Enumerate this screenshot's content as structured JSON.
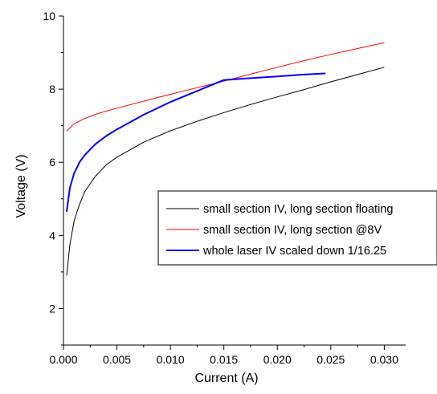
{
  "chart_data": {
    "type": "line",
    "xlabel": "Current (A)",
    "ylabel": "Voltage (V)",
    "xlim": [
      0.0,
      0.032
    ],
    "ylim": [
      1.0,
      10.0
    ],
    "x_ticks": [
      0.0,
      0.005,
      0.01,
      0.015,
      0.02,
      0.025,
      0.03
    ],
    "x_tick_labels": [
      "0.000",
      "0.005",
      "0.010",
      "0.015",
      "0.020",
      "0.025",
      "0.030"
    ],
    "y_ticks": [
      2,
      4,
      6,
      8,
      10
    ],
    "y_tick_labels": [
      "2",
      "4",
      "6",
      "8",
      "10"
    ],
    "grid": false,
    "legend_position": "center-right",
    "series": [
      {
        "name": "small section IV, long section floating",
        "color": "#000000",
        "x": [
          0.0003,
          0.0006,
          0.001,
          0.0015,
          0.002,
          0.003,
          0.004,
          0.005,
          0.0075,
          0.01,
          0.0125,
          0.015,
          0.0175,
          0.02,
          0.0225,
          0.025,
          0.0275,
          0.03
        ],
        "y": [
          2.9,
          3.75,
          4.4,
          4.85,
          5.2,
          5.62,
          5.93,
          6.14,
          6.55,
          6.86,
          7.12,
          7.36,
          7.58,
          7.79,
          7.99,
          8.2,
          8.4,
          8.6
        ]
      },
      {
        "name": "small section IV, long section @8V",
        "color": "#ff0000",
        "x": [
          0.0003,
          0.001,
          0.002,
          0.003,
          0.004,
          0.005,
          0.0075,
          0.01,
          0.0125,
          0.015,
          0.0175,
          0.02,
          0.0225,
          0.025,
          0.0275,
          0.03
        ],
        "y": [
          6.85,
          7.05,
          7.2,
          7.31,
          7.4,
          7.48,
          7.67,
          7.86,
          8.04,
          8.22,
          8.41,
          8.6,
          8.78,
          8.95,
          9.11,
          9.27
        ]
      },
      {
        "name": "whole laser IV scaled down 1/16.25",
        "color": "#0000ff",
        "x": [
          0.0003,
          0.0006,
          0.001,
          0.0015,
          0.002,
          0.003,
          0.004,
          0.005,
          0.0075,
          0.01,
          0.0125,
          0.015,
          0.0175,
          0.02,
          0.0225,
          0.0245
        ],
        "y": [
          4.65,
          5.3,
          5.7,
          6.0,
          6.2,
          6.5,
          6.72,
          6.9,
          7.3,
          7.65,
          7.95,
          8.25,
          8.3,
          8.35,
          8.4,
          8.43
        ]
      }
    ]
  }
}
